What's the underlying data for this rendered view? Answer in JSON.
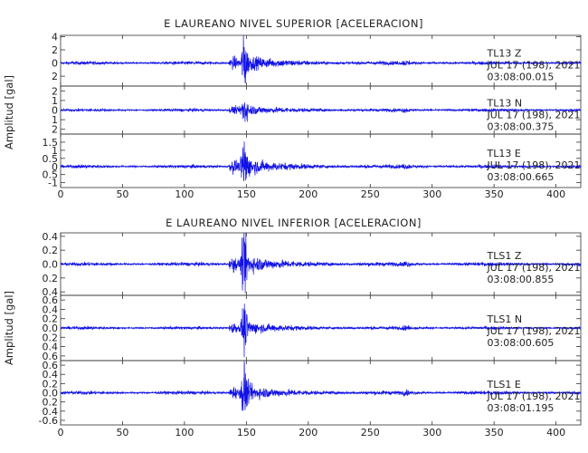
{
  "chart_data": [
    {
      "type": "line",
      "title": "E LAUREANO NIVEL SUPERIOR [ACELERACION]",
      "ylabel": "Amplitud [gal]",
      "xlabel": "",
      "xlim": [
        0,
        420
      ],
      "xticks": [
        0,
        50,
        100,
        150,
        200,
        250,
        300,
        350,
        400
      ],
      "grid": false,
      "traces": [
        {
          "name": "TL13 Z",
          "station": "TL13",
          "component": "Z",
          "date": "JUL 17 (198), 2021",
          "time": "03:08:00.015",
          "ylim": [
            -3.5,
            4.2
          ],
          "yticks": [
            -2,
            0,
            2,
            4
          ],
          "ytick_labels": [
            "2",
            "0",
            "2",
            "4"
          ],
          "event_time": 148,
          "peak_amplitude": 3.8,
          "noise_amplitude": 0.2
        },
        {
          "name": "TL13 N",
          "station": "TL13",
          "component": "N",
          "date": "JUL 17 (198), 2021",
          "time": "03:08:00.375",
          "ylim": [
            -2.5,
            2.5
          ],
          "yticks": [
            -2,
            -1,
            0,
            1,
            2
          ],
          "ytick_labels": [
            "2",
            "1",
            "0",
            "1",
            "2"
          ],
          "event_time": 148,
          "peak_amplitude": 1.6,
          "noise_amplitude": 0.12
        },
        {
          "name": "TL13 E",
          "station": "TL13",
          "component": "E",
          "date": "JUL 17 (198), 2021",
          "time": "03:08:00.665",
          "ylim": [
            -1.3,
            2.0
          ],
          "yticks": [
            -1,
            -0.5,
            0,
            0.5,
            1,
            1.5
          ],
          "ytick_labels": [
            "-1",
            "0.5",
            "0",
            "0.5",
            "1",
            "1.5"
          ],
          "event_time": 148,
          "peak_amplitude": 1.7,
          "noise_amplitude": 0.08
        }
      ]
    },
    {
      "type": "line",
      "title": "E LAUREANO NIVEL INFERIOR [ACELERACION]",
      "ylabel": "Amplitud [gal]",
      "xlabel": "",
      "xlim": [
        0,
        420
      ],
      "xticks": [
        0,
        50,
        100,
        150,
        200,
        250,
        300,
        350,
        400
      ],
      "grid": false,
      "traces": [
        {
          "name": "TLS1 Z",
          "station": "TLS1",
          "component": "Z",
          "date": "JUL 17 (198), 2021",
          "time": "03:08:00.855",
          "ylim": [
            -0.45,
            0.45
          ],
          "yticks": [
            -0.4,
            -0.2,
            0,
            0.2,
            0.4
          ],
          "ytick_labels": [
            "0.4",
            "0.2",
            "0.0",
            "0.2",
            "0.4"
          ],
          "event_time": 148,
          "peak_amplitude": 0.42,
          "noise_amplitude": 0.02
        },
        {
          "name": "TLS1 N",
          "station": "TLS1",
          "component": "N",
          "date": "JUL 17 (198), 2021",
          "time": "03:08:00.605",
          "ylim": [
            -0.7,
            0.7
          ],
          "yticks": [
            -0.6,
            -0.4,
            -0.2,
            0,
            0.2,
            0.4,
            0.6
          ],
          "ytick_labels": [
            "0.6",
            "0.4",
            "0.2",
            "0.0",
            "0.2",
            "0.4",
            "0.6"
          ],
          "event_time": 148,
          "peak_amplitude": 0.45,
          "noise_amplitude": 0.025
        },
        {
          "name": "TLS1 E",
          "station": "TLS1",
          "component": "E",
          "date": "JUL 17 (198), 2021",
          "time": "03:08:01.195",
          "ylim": [
            -0.7,
            0.7
          ],
          "yticks": [
            -0.6,
            -0.4,
            -0.2,
            0,
            0.2,
            0.4,
            0.6
          ],
          "ytick_labels": [
            "-0.6",
            "0.4",
            "0.2",
            "0.0",
            "0.2",
            "0.4",
            "0.6"
          ],
          "event_time": 148,
          "peak_amplitude": 0.55,
          "noise_amplitude": 0.03
        }
      ]
    }
  ],
  "colors": {
    "trace": "#1010e6",
    "axis": "#333333",
    "text": "#222222"
  }
}
